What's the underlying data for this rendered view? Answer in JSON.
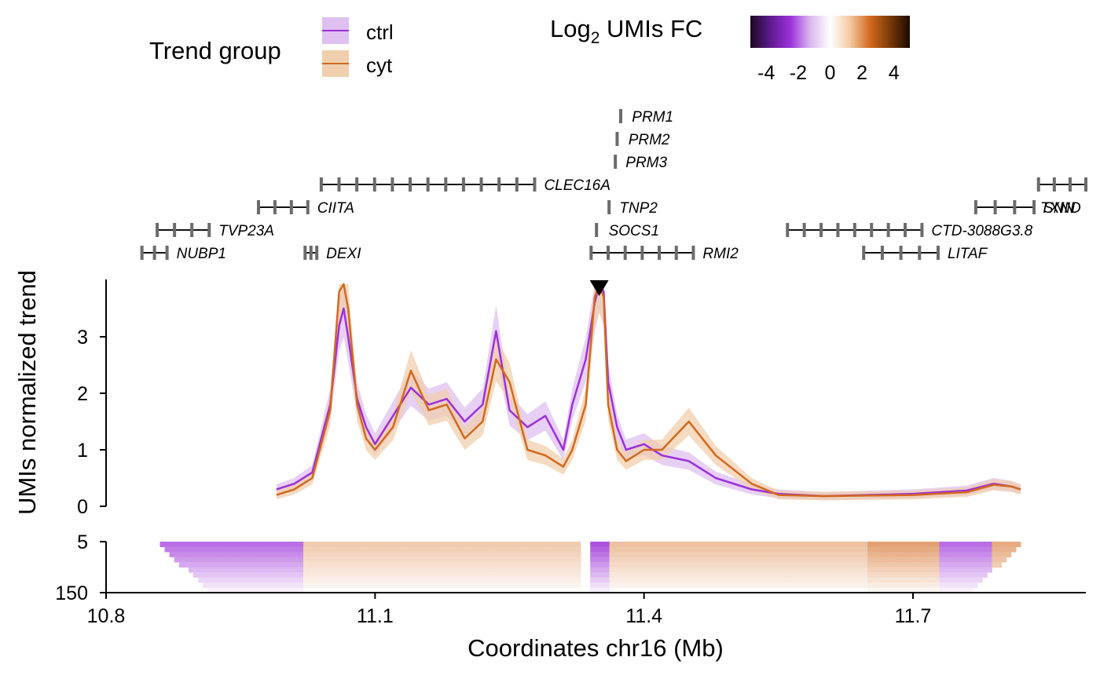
{
  "chart_data": {
    "type": "line",
    "xlabel": "Coordinates chr16 (Mb)",
    "ylabel": "UMIs normalized trend",
    "xlim": [
      10.8,
      11.9
    ],
    "ylim": [
      0,
      4
    ],
    "x_ticks": [
      "10.8",
      "11.1",
      "11.4",
      "11.7"
    ],
    "y_ticks": [
      "0",
      "1",
      "2",
      "3"
    ],
    "heatmap_ticks": [
      "5",
      "150"
    ],
    "viewpoint_marker": 11.35,
    "legend": {
      "title": "Trend group",
      "entries": [
        {
          "label": "ctrl",
          "color": "#9B30D9",
          "band": "#DFC0F0"
        },
        {
          "label": "cyt",
          "color": "#D2691E",
          "band": "#F0CFAE"
        }
      ]
    },
    "colorbar": {
      "title_main": "Log",
      "title_sub": "2",
      "title_rest": " UMIs FC",
      "ticks": [
        "-4",
        "-2",
        "0",
        "2",
        "4"
      ],
      "range": [
        -5,
        5
      ],
      "colors": [
        "#1a0a1f",
        "#5e1a8f",
        "#9B30D9",
        "#d9b8ef",
        "#ffffff",
        "#f4c9a3",
        "#D2691E",
        "#7a3a08",
        "#1a0a00"
      ]
    },
    "series": [
      {
        "name": "ctrl",
        "color": "#9B30D9",
        "x": [
          10.99,
          11.01,
          11.03,
          11.04,
          11.05,
          11.06,
          11.065,
          11.07,
          11.08,
          11.09,
          11.1,
          11.12,
          11.14,
          11.16,
          11.18,
          11.2,
          11.22,
          11.235,
          11.25,
          11.27,
          11.29,
          11.31,
          11.32,
          11.335,
          11.345,
          11.35,
          11.355,
          11.36,
          11.37,
          11.38,
          11.4,
          11.42,
          11.45,
          11.48,
          11.52,
          11.55,
          11.6,
          11.7,
          11.76,
          11.79,
          11.81,
          11.82
        ],
        "values": [
          0.3,
          0.4,
          0.6,
          1.2,
          1.8,
          3.2,
          3.5,
          3.0,
          1.9,
          1.4,
          1.1,
          1.6,
          2.1,
          1.8,
          1.9,
          1.5,
          1.8,
          3.1,
          1.7,
          1.4,
          1.6,
          1.0,
          1.8,
          2.6,
          3.6,
          4.0,
          3.8,
          2.2,
          1.4,
          1.0,
          1.1,
          0.9,
          0.8,
          0.5,
          0.3,
          0.22,
          0.18,
          0.22,
          0.28,
          0.4,
          0.35,
          0.3
        ]
      },
      {
        "name": "cyt",
        "color": "#D2691E",
        "x": [
          10.99,
          11.01,
          11.03,
          11.04,
          11.05,
          11.06,
          11.065,
          11.07,
          11.08,
          11.09,
          11.1,
          11.12,
          11.14,
          11.16,
          11.18,
          11.2,
          11.22,
          11.235,
          11.25,
          11.27,
          11.29,
          11.31,
          11.32,
          11.335,
          11.345,
          11.35,
          11.355,
          11.36,
          11.37,
          11.38,
          11.4,
          11.42,
          11.45,
          11.48,
          11.52,
          11.55,
          11.6,
          11.7,
          11.76,
          11.79,
          11.81,
          11.82
        ],
        "values": [
          0.2,
          0.3,
          0.5,
          1.1,
          1.7,
          3.8,
          4.0,
          3.5,
          1.8,
          1.2,
          1.0,
          1.4,
          2.4,
          1.7,
          1.8,
          1.2,
          1.5,
          2.6,
          2.2,
          1.0,
          0.9,
          0.7,
          1.0,
          1.8,
          3.7,
          4.0,
          3.7,
          1.8,
          1.0,
          0.8,
          1.0,
          1.0,
          1.5,
          0.9,
          0.4,
          0.2,
          0.18,
          0.2,
          0.25,
          0.38,
          0.35,
          0.3
        ]
      }
    ],
    "genes": [
      {
        "name": "PRM1",
        "start": 11.374,
        "end": 11.376,
        "row": 0
      },
      {
        "name": "PRM2",
        "start": 11.37,
        "end": 11.372,
        "row": 1
      },
      {
        "name": "PRM3",
        "start": 11.368,
        "end": 11.369,
        "row": 2
      },
      {
        "name": "CLEC16A",
        "start": 11.04,
        "end": 11.278,
        "row": 3
      },
      {
        "name": "TXND",
        "start": 11.84,
        "end": 11.9,
        "row": 3
      },
      {
        "name": "CIITA",
        "start": 10.97,
        "end": 11.025,
        "row": 4
      },
      {
        "name": "TNP2",
        "start": 11.361,
        "end": 11.362,
        "row": 4
      },
      {
        "name": "SNN",
        "start": 11.77,
        "end": 11.835,
        "row": 4
      },
      {
        "name": "TVP23A",
        "start": 10.857,
        "end": 10.915,
        "row": 5
      },
      {
        "name": "SOCS1",
        "start": 11.347,
        "end": 11.35,
        "row": 5
      },
      {
        "name": "CTD-3088G3.8",
        "start": 11.56,
        "end": 11.71,
        "row": 5
      },
      {
        "name": "NUBP1",
        "start": 10.84,
        "end": 10.868,
        "row": 6
      },
      {
        "name": "DEXI",
        "start": 11.022,
        "end": 11.035,
        "row": 6
      },
      {
        "name": "RMI2",
        "start": 11.341,
        "end": 11.455,
        "row": 6
      },
      {
        "name": "LITAF",
        "start": 11.645,
        "end": 11.728,
        "row": 6
      }
    ]
  }
}
